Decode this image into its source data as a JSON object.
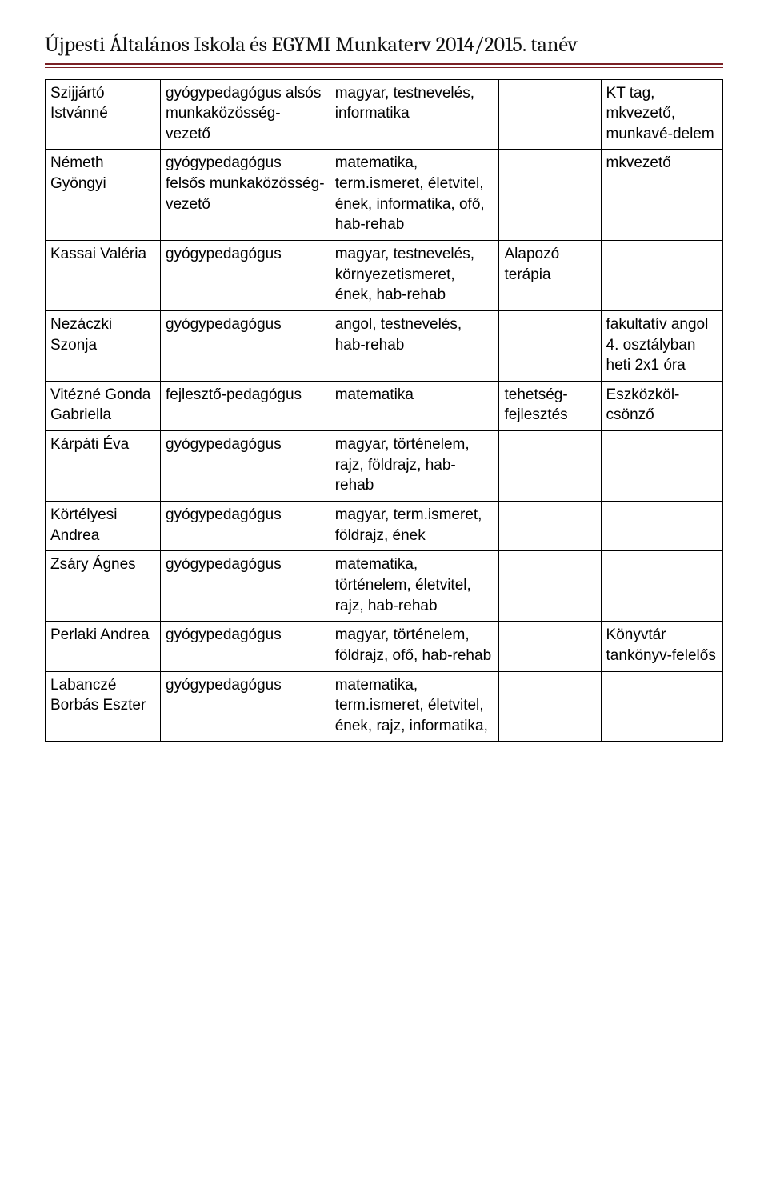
{
  "header": {
    "title": "Újpesti Általános Iskola és EGYMI Munkaterv 2014/2015. tanév",
    "title_font": "Cambria",
    "title_fontsize": 26,
    "rule_color": "#7a2024"
  },
  "table": {
    "type": "table",
    "column_widths_pct": [
      17,
      25,
      25,
      15,
      18
    ],
    "border_color": "#000000",
    "cell_font": "Comic Sans MS",
    "cell_fontsize": 19,
    "rows": [
      {
        "name": "Szijjártó Istvánné",
        "role": "gyógypedagógus alsós munkaközösség-vezető",
        "subjects": "magyar, testnevelés, informatika",
        "extra": "",
        "note": "KT tag, mkvezető, munkavé-delem"
      },
      {
        "name": "Németh Gyöngyi",
        "role": "gyógypedagógus felsős munkaközösség-vezető",
        "subjects": "matematika, term.ismeret, életvitel, ének, informatika, ofő, hab-rehab",
        "extra": "",
        "note": "mkvezető"
      },
      {
        "name": "Kassai Valéria",
        "role": "gyógypedagógus",
        "subjects": "magyar, testnevelés, környezetismeret, ének, hab-rehab",
        "extra": "Alapozó terápia",
        "note": ""
      },
      {
        "name": "Nezáczki Szonja",
        "role": "gyógypedagógus",
        "subjects": "angol, testnevelés, hab-rehab",
        "extra": "",
        "note": "fakultatív angol 4. osztályban heti 2x1 óra"
      },
      {
        "name": "Vitézné Gonda Gabriella",
        "role": "fejlesztő-pedagógus",
        "subjects": "matematika",
        "extra": "tehetség-fejlesztés",
        "note": "Eszközköl-csönző"
      },
      {
        "name": "Kárpáti Éva",
        "role": "gyógypedagógus",
        "subjects": "magyar, történelem, rajz, földrajz, hab-rehab",
        "extra": "",
        "note": ""
      },
      {
        "name": "Körtélyesi Andrea",
        "role": "gyógypedagógus",
        "subjects": "magyar, term.ismeret, földrajz, ének",
        "extra": "",
        "note": ""
      },
      {
        "name": "Zsáry Ágnes",
        "role": "gyógypedagógus",
        "subjects": "matematika, történelem, életvitel, rajz, hab-rehab",
        "extra": "",
        "note": ""
      },
      {
        "name": "Perlaki Andrea",
        "role": "gyógypedagógus",
        "subjects": "magyar, történelem, földrajz, ofő, hab-rehab",
        "extra": "",
        "note": "Könyvtár tankönyv-felelős"
      },
      {
        "name": "Labanczé Borbás Eszter",
        "role": "gyógypedagógus",
        "subjects": "matematika, term.ismeret, életvitel, ének, rajz, informatika,",
        "extra": "",
        "note": ""
      }
    ]
  }
}
